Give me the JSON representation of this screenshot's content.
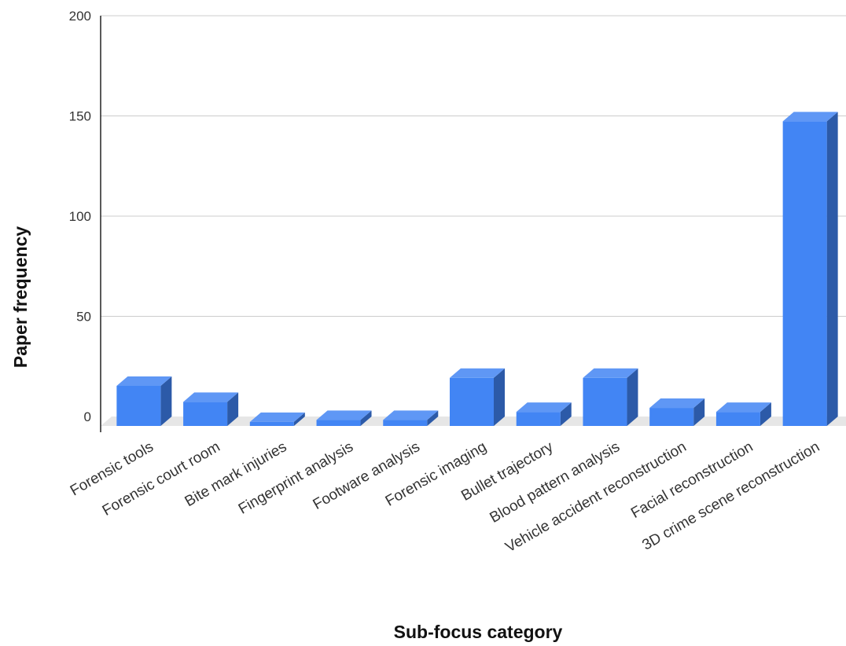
{
  "chart_data": {
    "type": "bar",
    "title": "",
    "xlabel": "Sub-focus category",
    "ylabel": "Paper frequency",
    "ylim": [
      0,
      200
    ],
    "yticks": [
      0,
      50,
      100,
      150,
      200
    ],
    "grid": true,
    "legend": "none",
    "style": "3d",
    "categories": [
      "Forensic tools",
      "Forensic court room",
      "Bite mark injuries",
      "Fingerprint analysis",
      "Footware analysis",
      "Forensic imaging",
      "Bullet trajectory",
      "Blood pattern analysis",
      "Vehicle accident reconstruction",
      "Facial reconstruction",
      "3D crime scene reconstruction"
    ],
    "values": [
      20,
      12,
      2,
      3,
      3,
      24,
      7,
      24,
      9,
      7,
      152
    ],
    "colors": {
      "bar_front": "#4285f4",
      "bar_top": "#5f97f5",
      "bar_side": "#2c5aa8",
      "grid": "#cccccc",
      "floor": "#e6e6e6",
      "axis": "#222222"
    }
  }
}
